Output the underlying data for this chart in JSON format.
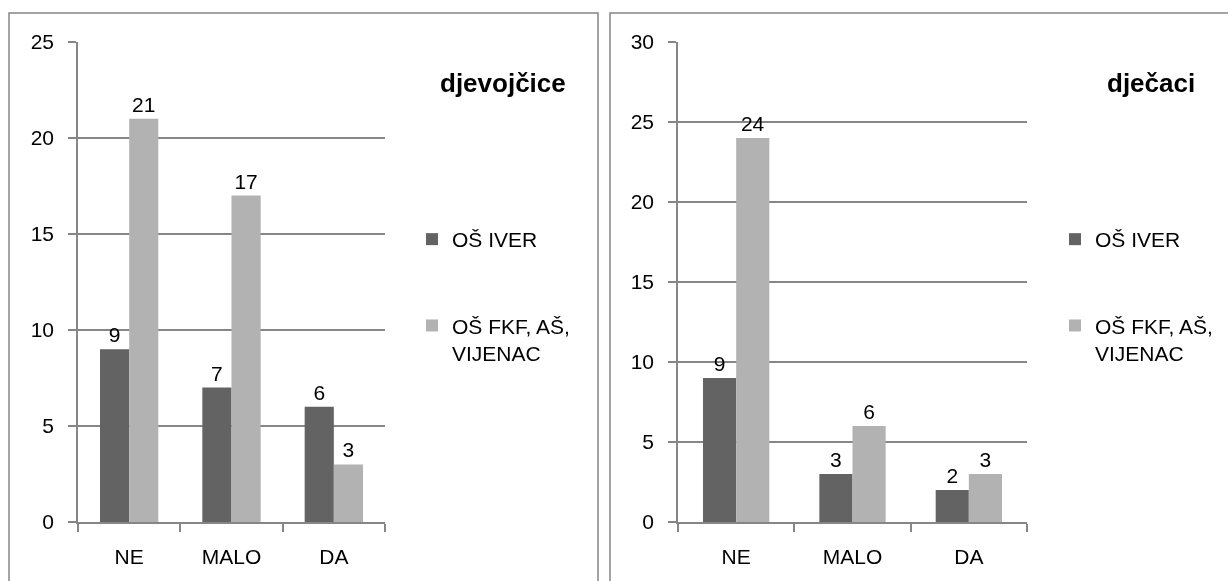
{
  "chart_data": [
    {
      "type": "bar",
      "legend_title": "djevojčice",
      "categories": [
        "NE",
        "MALO",
        "DA"
      ],
      "series": [
        {
          "name": "OŠ IVER",
          "color": "#636363",
          "values": [
            9,
            7,
            6
          ]
        },
        {
          "name": "OŠ FKF, AŠ, VIJENAC",
          "color": "#b2b2b2",
          "values": [
            21,
            17,
            3
          ]
        }
      ],
      "ylim": [
        0,
        25
      ],
      "yticks": [
        0,
        5,
        10,
        15,
        20,
        25
      ],
      "grid": "y",
      "legend": "right",
      "data_labels": true
    },
    {
      "type": "bar",
      "legend_title": "dječaci",
      "categories": [
        "NE",
        "MALO",
        "DA"
      ],
      "series": [
        {
          "name": "OŠ IVER",
          "color": "#636363",
          "values": [
            9,
            3,
            2
          ]
        },
        {
          "name": "OŠ FKF, AŠ, VIJENAC",
          "color": "#b2b2b2",
          "values": [
            24,
            6,
            3
          ]
        }
      ],
      "ylim": [
        0,
        30
      ],
      "yticks": [
        0,
        5,
        10,
        15,
        20,
        25,
        30
      ],
      "grid": "y",
      "legend": "right",
      "data_labels": true
    }
  ]
}
